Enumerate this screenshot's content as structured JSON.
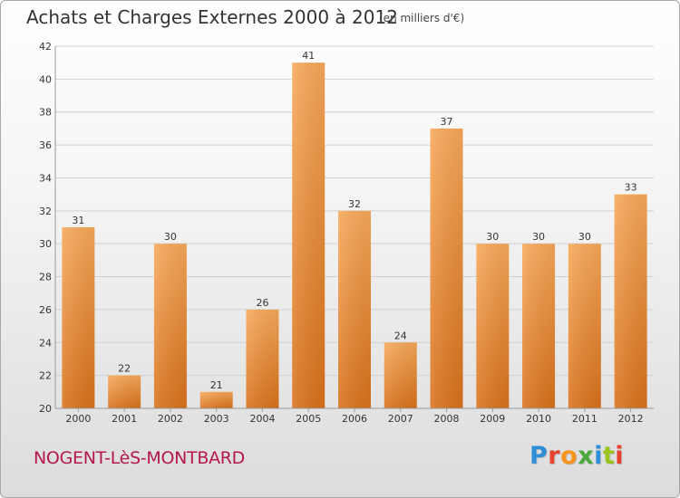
{
  "header": {
    "title": "Achats et Charges Externes 2000 à 2012",
    "subtitle": "(en milliers d'€)"
  },
  "footer": {
    "commune": "NOGENT-LèS-MONTBARD",
    "brand": "Proxiti",
    "brand_colors": [
      "#2e8fd8",
      "#e8432c",
      "#f7941d",
      "#4aa83c",
      "#2e8fd8",
      "#9ac31c",
      "#e8432c"
    ]
  },
  "colors": {
    "bar_light": "#f8a95a",
    "bar_dark": "#d9721c",
    "grid": "#d0d0d0",
    "axis_text": "#333333"
  },
  "chart_data": {
    "type": "bar",
    "title": "Achats et Charges Externes 2000 à 2012",
    "subtitle": "(en milliers d'€)",
    "categories": [
      "2000",
      "2001",
      "2002",
      "2003",
      "2004",
      "2005",
      "2006",
      "2007",
      "2008",
      "2009",
      "2010",
      "2011",
      "2012"
    ],
    "values": [
      31,
      22,
      30,
      21,
      26,
      41,
      32,
      24,
      37,
      30,
      30,
      30,
      33
    ],
    "ylim": [
      20,
      42
    ],
    "yticks": [
      20,
      22,
      24,
      26,
      28,
      30,
      32,
      34,
      36,
      38,
      40,
      42
    ],
    "grid": true
  }
}
